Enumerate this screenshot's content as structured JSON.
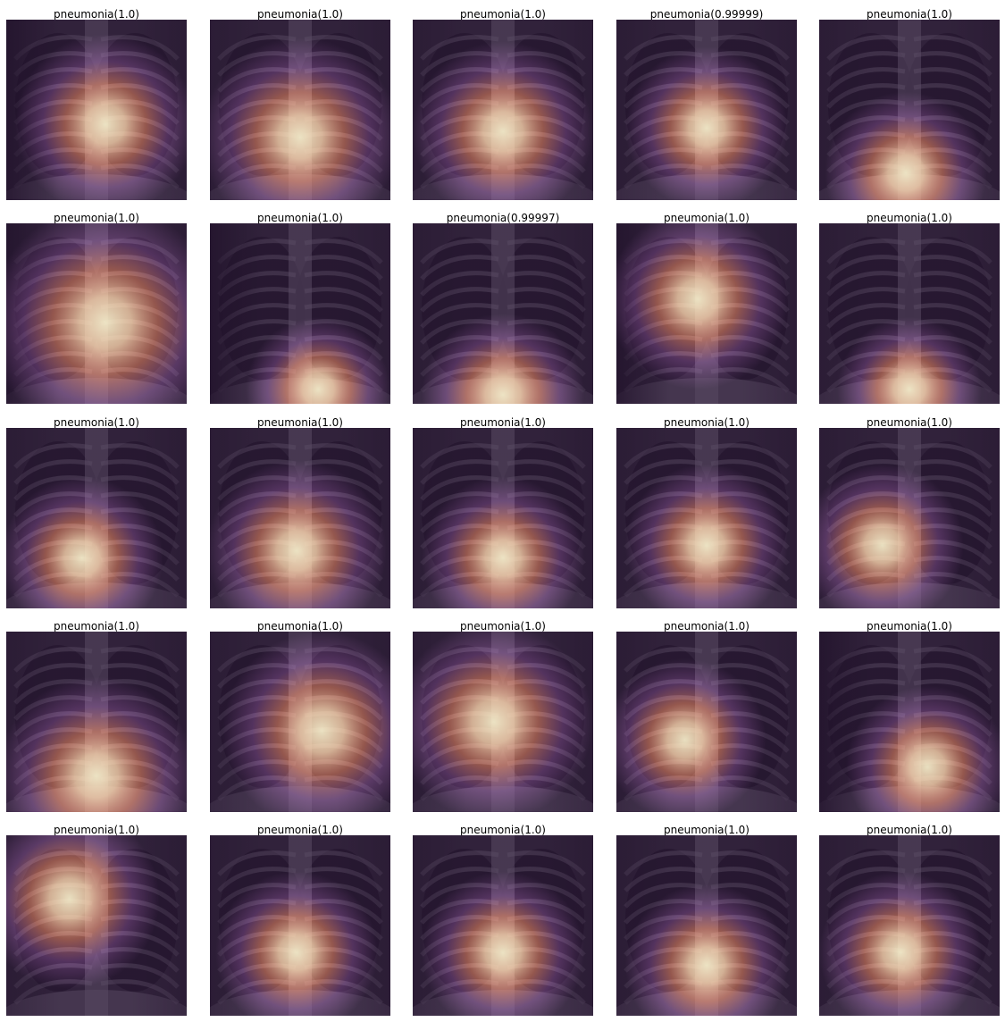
{
  "figure": {
    "panels": [
      {
        "label": "pneumonia(1.0)",
        "hotspot": [
          0.55,
          0.58
        ],
        "hotspot_size": 0.5,
        "dark_left": true
      },
      {
        "label": "pneumonia(1.0)",
        "hotspot": [
          0.5,
          0.65
        ],
        "hotspot_size": 0.55,
        "dark_left": false
      },
      {
        "label": "pneumonia(1.0)",
        "hotspot": [
          0.5,
          0.62
        ],
        "hotspot_size": 0.5,
        "dark_left": false
      },
      {
        "label": "pneumonia(0.99999)",
        "hotspot": [
          0.5,
          0.6
        ],
        "hotspot_size": 0.45,
        "dark_left": false
      },
      {
        "label": "pneumonia(1.0)",
        "hotspot": [
          0.48,
          0.85
        ],
        "hotspot_size": 0.45,
        "dark_left": false
      },
      {
        "label": "pneumonia(1.0)",
        "hotspot": [
          0.55,
          0.55
        ],
        "hotspot_size": 0.65,
        "dark_left": true
      },
      {
        "label": "pneumonia(1.0)",
        "hotspot": [
          0.6,
          0.92
        ],
        "hotspot_size": 0.4,
        "dark_left": true
      },
      {
        "label": "pneumonia(0.99997)",
        "hotspot": [
          0.5,
          0.95
        ],
        "hotspot_size": 0.45,
        "dark_left": false
      },
      {
        "label": "pneumonia(1.0)",
        "hotspot": [
          0.45,
          0.42
        ],
        "hotspot_size": 0.5,
        "dark_left": true
      },
      {
        "label": "pneumonia(1.0)",
        "hotspot": [
          0.5,
          0.92
        ],
        "hotspot_size": 0.4,
        "dark_left": false
      },
      {
        "label": "pneumonia(1.0)",
        "hotspot": [
          0.42,
          0.72
        ],
        "hotspot_size": 0.45,
        "dark_left": false
      },
      {
        "label": "pneumonia(1.0)",
        "hotspot": [
          0.48,
          0.68
        ],
        "hotspot_size": 0.5,
        "dark_left": false
      },
      {
        "label": "pneumonia(1.0)",
        "hotspot": [
          0.5,
          0.72
        ],
        "hotspot_size": 0.45,
        "dark_left": false
      },
      {
        "label": "pneumonia(1.0)",
        "hotspot": [
          0.5,
          0.65
        ],
        "hotspot_size": 0.45,
        "dark_left": false
      },
      {
        "label": "pneumonia(1.0)",
        "hotspot": [
          0.35,
          0.65
        ],
        "hotspot_size": 0.45,
        "dark_left": false
      },
      {
        "label": "pneumonia(1.0)",
        "hotspot": [
          0.5,
          0.8
        ],
        "hotspot_size": 0.55,
        "dark_left": false
      },
      {
        "label": "pneumonia(1.0)",
        "hotspot": [
          0.62,
          0.55
        ],
        "hotspot_size": 0.55,
        "dark_left": false
      },
      {
        "label": "pneumonia(1.0)",
        "hotspot": [
          0.45,
          0.5
        ],
        "hotspot_size": 0.55,
        "dark_left": false
      },
      {
        "label": "pneumonia(1.0)",
        "hotspot": [
          0.38,
          0.6
        ],
        "hotspot_size": 0.45,
        "dark_left": false
      },
      {
        "label": "pneumonia(1.0)",
        "hotspot": [
          0.6,
          0.75
        ],
        "hotspot_size": 0.45,
        "dark_left": true
      },
      {
        "label": "pneumonia(1.0)",
        "hotspot": [
          0.35,
          0.35
        ],
        "hotspot_size": 0.5,
        "dark_left": false
      },
      {
        "label": "pneumonia(1.0)",
        "hotspot": [
          0.48,
          0.65
        ],
        "hotspot_size": 0.45,
        "dark_left": false
      },
      {
        "label": "pneumonia(1.0)",
        "hotspot": [
          0.5,
          0.65
        ],
        "hotspot_size": 0.45,
        "dark_left": false
      },
      {
        "label": "pneumonia(1.0)",
        "hotspot": [
          0.5,
          0.72
        ],
        "hotspot_size": 0.45,
        "dark_left": false
      },
      {
        "label": "pneumonia(1.0)",
        "hotspot": [
          0.45,
          0.65
        ],
        "hotspot_size": 0.45,
        "dark_left": false
      }
    ],
    "colors": {
      "background": "#ffffff",
      "overlay_dark": "#2a0f3c",
      "overlay_mid": "#7a3f8e",
      "overlay_warm": "#e07a6a",
      "overlay_hot": "#f3e9c8",
      "xray_dark": "#151515",
      "xray_light": "#9a9a9a"
    }
  }
}
